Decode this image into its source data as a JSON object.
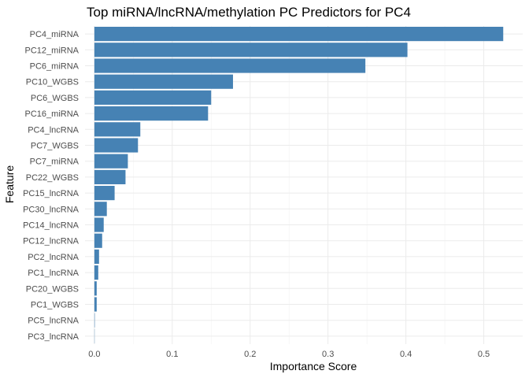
{
  "chart_data": {
    "type": "bar",
    "orientation": "horizontal",
    "title": "Top miRNA/lncRNA/methylation PC Predictors for PC4",
    "xlabel": "Importance Score",
    "ylabel": "Feature",
    "xlim": [
      -0.012,
      0.55
    ],
    "xticks": [
      0.0,
      0.1,
      0.2,
      0.3,
      0.4,
      0.5
    ],
    "xtick_labels": [
      "0.0",
      "0.1",
      "0.2",
      "0.3",
      "0.4",
      "0.5"
    ],
    "bar_color": "#4682B4",
    "grid": true,
    "categories": [
      "PC4_miRNA",
      "PC12_miRNA",
      "PC6_miRNA",
      "PC10_WGBS",
      "PC6_WGBS",
      "PC16_miRNA",
      "PC4_lncRNA",
      "PC7_WGBS",
      "PC7_miRNA",
      "PC22_WGBS",
      "PC15_lncRNA",
      "PC30_lncRNA",
      "PC14_lncRNA",
      "PC12_lncRNA",
      "PC2_lncRNA",
      "PC1_lncRNA",
      "PC20_WGBS",
      "PC1_WGBS",
      "PC5_lncRNA",
      "PC3_lncRNA"
    ],
    "values": [
      0.525,
      0.402,
      0.348,
      0.178,
      0.15,
      0.146,
      0.059,
      0.056,
      0.043,
      0.04,
      0.026,
      0.016,
      0.012,
      0.01,
      0.006,
      0.005,
      0.003,
      0.003,
      0.0005,
      0.0003
    ]
  }
}
